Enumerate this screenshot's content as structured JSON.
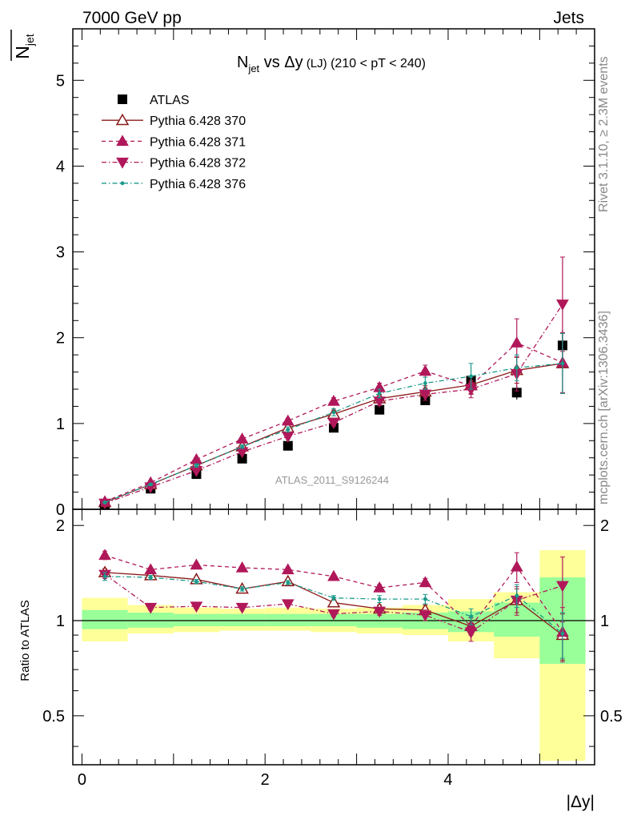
{
  "chart_data": [
    {
      "type": "scatter",
      "panel": "main",
      "header_left": "7000 GeV pp",
      "header_right": "Jets",
      "title": {
        "main": "N",
        "main_sub": "jet",
        "rest": " vs Δy",
        "small": " (LJ)",
        "range": " (210 < pT < 240)"
      },
      "ylabel": {
        "main": "N",
        "sub": "jet"
      },
      "watermark": "ATLAS_2011_S9126244",
      "side_text_top": "Rivet 3.1.10, ≥ 2.3M events",
      "side_text_bottom": "mcplots.cern.ch [arXiv:1306.3436]",
      "xlim": [
        -0.1,
        5.6
      ],
      "ylim": [
        0,
        5.6
      ],
      "yticks": [
        {
          "value": 0,
          "label": "0"
        },
        {
          "value": 1,
          "label": "1"
        },
        {
          "value": 2,
          "label": "2"
        },
        {
          "value": 3,
          "label": "3"
        },
        {
          "value": 4,
          "label": "4"
        },
        {
          "value": 5,
          "label": "5"
        }
      ],
      "x": [
        0.25,
        0.75,
        1.25,
        1.75,
        2.25,
        2.75,
        3.25,
        3.75,
        4.25,
        4.75,
        5.25
      ],
      "series": [
        {
          "name": "ATLAS",
          "marker": "square",
          "color": "#000000",
          "line": "none",
          "values": [
            0.06,
            0.24,
            0.41,
            0.59,
            0.74,
            0.95,
            1.16,
            1.27,
            1.5,
            1.36,
            1.91
          ],
          "errors": [
            0.01,
            0.01,
            0.01,
            0.01,
            0.01,
            0.02,
            0.02,
            0.03,
            0.06,
            0.08,
            0.18
          ]
        },
        {
          "name": "Pythia 6.428 370",
          "marker": "triangle-up-open",
          "color": "#8b1a1a",
          "line": "solid",
          "values": [
            0.08,
            0.29,
            0.51,
            0.73,
            0.95,
            1.11,
            1.29,
            1.37,
            1.45,
            1.62,
            1.7
          ],
          "errors": [
            0.005,
            0.01,
            0.02,
            0.02,
            0.03,
            0.04,
            0.05,
            0.07,
            0.1,
            0.15,
            0.35
          ]
        },
        {
          "name": "Pythia 6.428 371",
          "marker": "triangle-up",
          "color": "#b0185a",
          "line": "dashed",
          "values": [
            0.09,
            0.31,
            0.58,
            0.82,
            1.03,
            1.26,
            1.42,
            1.61,
            1.44,
            1.94,
            1.71
          ],
          "errors": [
            0.005,
            0.01,
            0.02,
            0.02,
            0.03,
            0.04,
            0.05,
            0.07,
            0.1,
            0.28,
            0.35
          ]
        },
        {
          "name": "Pythia 6.428 372",
          "marker": "triangle-down",
          "color": "#b0185a",
          "line": "dashdot",
          "values": [
            0.07,
            0.26,
            0.45,
            0.67,
            0.85,
            1.01,
            1.26,
            1.34,
            1.4,
            1.58,
            2.39
          ],
          "errors": [
            0.005,
            0.01,
            0.02,
            0.02,
            0.03,
            0.04,
            0.05,
            0.07,
            0.1,
            0.2,
            0.55
          ]
        },
        {
          "name": "Pythia 6.428 376",
          "marker": "dot",
          "color": "#1a9a8a",
          "line": "dashdot",
          "values": [
            0.08,
            0.29,
            0.51,
            0.73,
            0.93,
            1.13,
            1.35,
            1.47,
            1.55,
            1.65,
            1.7
          ],
          "errors": [
            0.005,
            0.01,
            0.02,
            0.02,
            0.03,
            0.04,
            0.05,
            0.07,
            0.15,
            0.15,
            0.35
          ]
        }
      ]
    },
    {
      "type": "scatter",
      "panel": "ratio",
      "ylabel": "Ratio to ATLAS",
      "xlabel": "|Δy|",
      "xlim": [
        -0.1,
        5.6
      ],
      "ylim": [
        0.35,
        2.25
      ],
      "xticks": [
        {
          "value": 0,
          "label": "0"
        },
        {
          "value": 2,
          "label": "2"
        },
        {
          "value": 4,
          "label": "4"
        }
      ],
      "yticks": [
        {
          "value": 0.5,
          "label": "0.5"
        },
        {
          "value": 1,
          "label": "1"
        },
        {
          "value": 2,
          "label": "2"
        }
      ],
      "bins": [
        [
          0,
          0.5
        ],
        [
          0.5,
          1
        ],
        [
          1,
          1.5
        ],
        [
          1.5,
          2
        ],
        [
          2,
          2.5
        ],
        [
          2.5,
          3
        ],
        [
          3,
          3.5
        ],
        [
          3.5,
          4
        ],
        [
          4,
          4.5
        ],
        [
          4.5,
          5
        ],
        [
          5,
          5.5
        ]
      ],
      "band_yellow": [
        [
          0.86,
          1.18
        ],
        [
          0.91,
          1.12
        ],
        [
          0.92,
          1.1
        ],
        [
          0.93,
          1.09
        ],
        [
          0.93,
          1.1
        ],
        [
          0.92,
          1.09
        ],
        [
          0.91,
          1.1
        ],
        [
          0.9,
          1.12
        ],
        [
          0.86,
          1.17
        ],
        [
          0.76,
          1.23
        ],
        [
          0.36,
          1.67
        ]
      ],
      "band_green": [
        [
          0.94,
          1.08
        ],
        [
          0.95,
          1.06
        ],
        [
          0.96,
          1.05
        ],
        [
          0.96,
          1.05
        ],
        [
          0.96,
          1.05
        ],
        [
          0.96,
          1.05
        ],
        [
          0.95,
          1.05
        ],
        [
          0.94,
          1.06
        ],
        [
          0.92,
          1.07
        ],
        [
          0.89,
          1.14
        ],
        [
          0.73,
          1.37
        ]
      ],
      "x": [
        0.25,
        0.75,
        1.25,
        1.75,
        2.25,
        2.75,
        3.25,
        3.75,
        4.25,
        4.75,
        5.25
      ],
      "series": [
        {
          "name": "Pythia 6.428 370",
          "values": [
            1.42,
            1.39,
            1.35,
            1.26,
            1.33,
            1.14,
            1.09,
            1.08,
            0.96,
            1.16,
            0.9
          ],
          "errors": [
            0.04,
            0.02,
            0.02,
            0.02,
            0.02,
            0.02,
            0.03,
            0.04,
            0.06,
            0.1,
            0.15
          ]
        },
        {
          "name": "Pythia 6.428 371",
          "values": [
            1.61,
            1.45,
            1.5,
            1.47,
            1.45,
            1.38,
            1.27,
            1.32,
            0.96,
            1.48,
            0.92
          ],
          "errors": [
            0.05,
            0.02,
            0.02,
            0.02,
            0.02,
            0.02,
            0.03,
            0.04,
            0.06,
            0.16,
            0.18
          ]
        },
        {
          "name": "Pythia 6.428 372",
          "values": [
            1.4,
            1.1,
            1.11,
            1.1,
            1.13,
            1.05,
            1.07,
            1.04,
            0.92,
            1.16,
            1.29
          ],
          "errors": [
            0.04,
            0.02,
            0.02,
            0.02,
            0.02,
            0.02,
            0.03,
            0.04,
            0.06,
            0.12,
            0.3
          ]
        },
        {
          "name": "Pythia 6.428 376",
          "values": [
            1.38,
            1.37,
            1.33,
            1.26,
            1.32,
            1.18,
            1.17,
            1.17,
            1.03,
            1.2,
            0.91
          ],
          "errors": [
            0.04,
            0.02,
            0.02,
            0.02,
            0.02,
            0.02,
            0.03,
            0.04,
            0.06,
            0.1,
            0.15
          ]
        }
      ]
    }
  ]
}
